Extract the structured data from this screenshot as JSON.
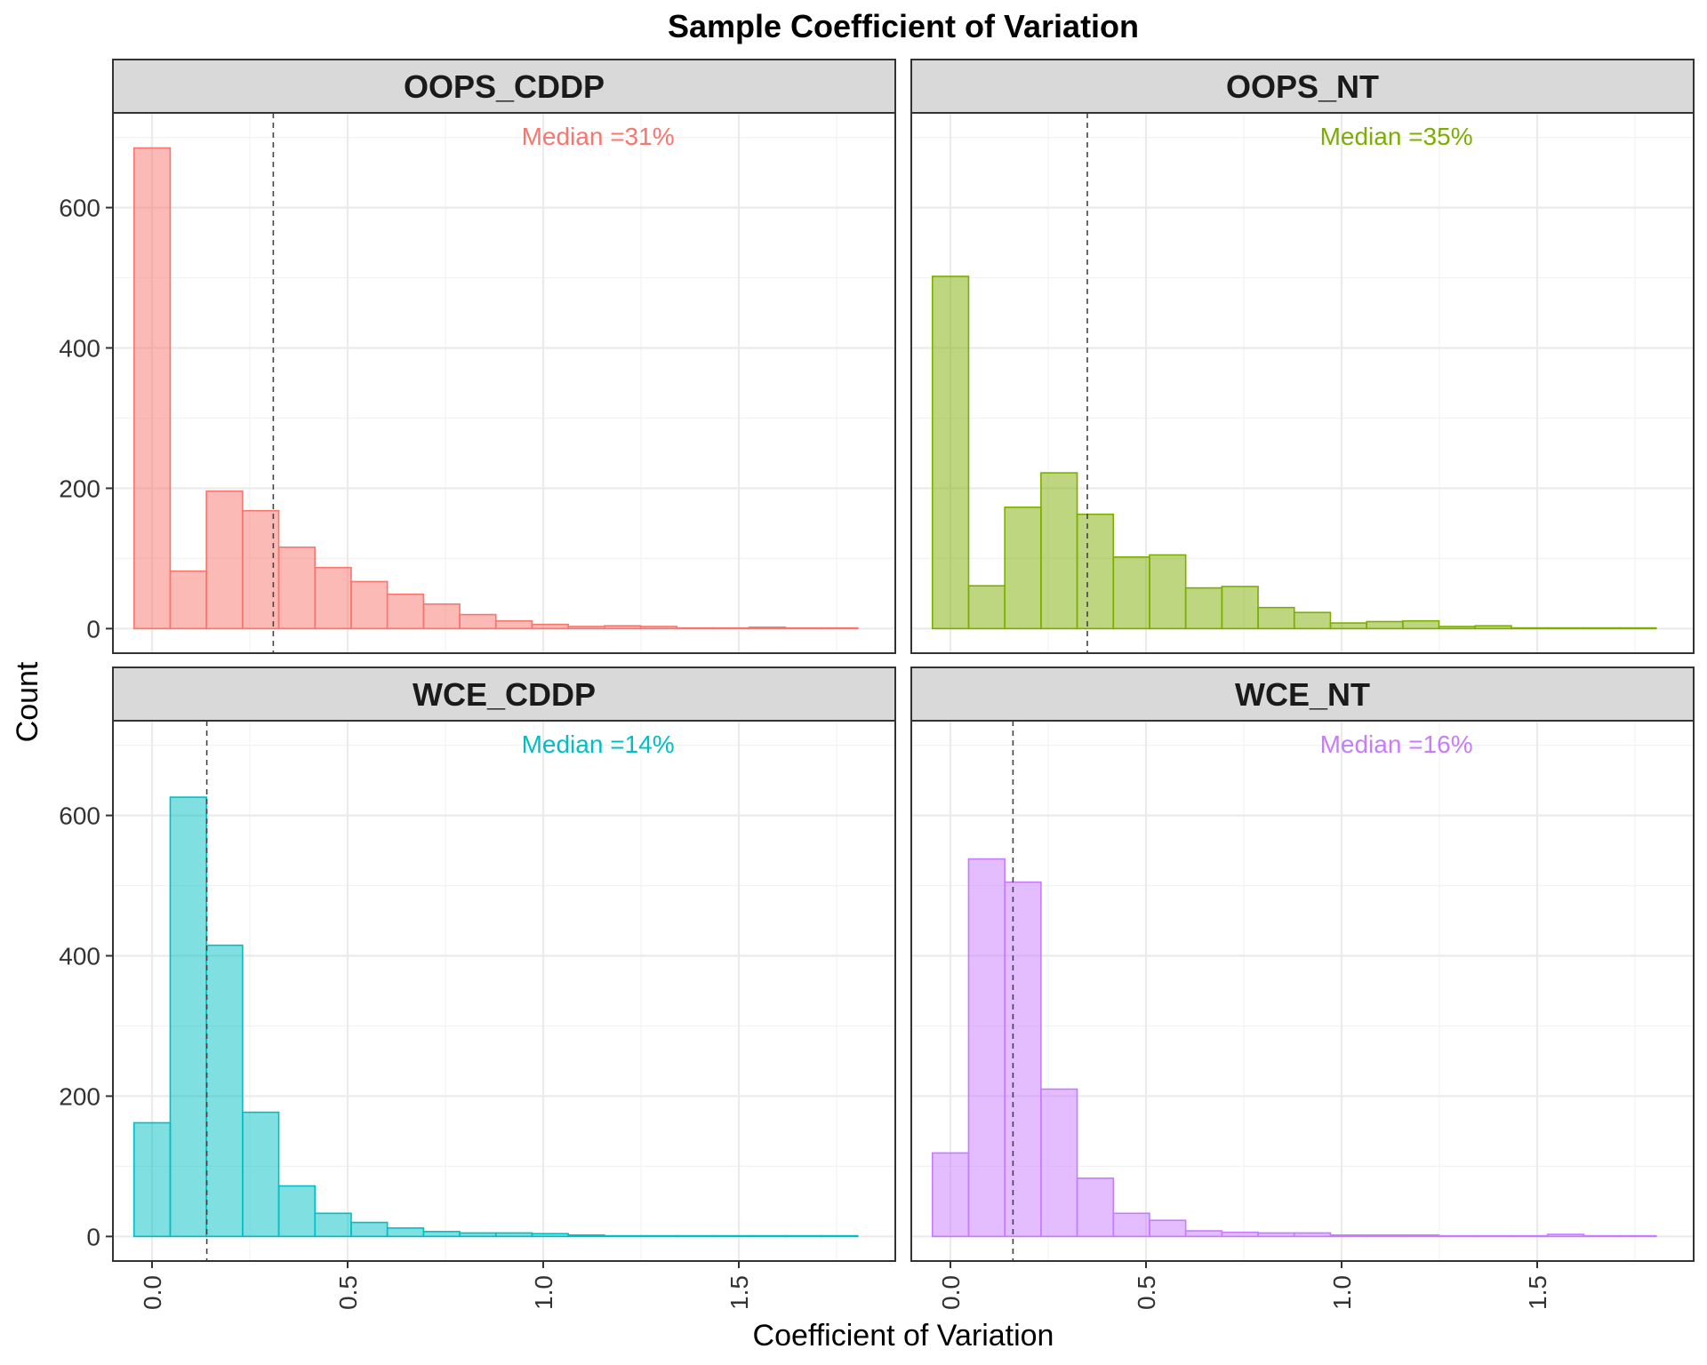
{
  "chart_data": {
    "type": "bar",
    "subtype": "faceted-histogram",
    "title": "Sample Coefficient of Variation",
    "xlabel": "Coefficient of Variation",
    "ylabel": "Count",
    "xlim": [
      -0.1,
      1.9
    ],
    "ylim": [
      -35,
      735
    ],
    "x_ticks": [
      "0.0",
      "0.5",
      "1.0",
      "1.5"
    ],
    "x_tick_values": [
      0,
      0.5,
      1.0,
      1.5
    ],
    "y_ticks": [
      "0",
      "200",
      "400",
      "600"
    ],
    "y_tick_values": [
      0,
      200,
      400,
      600
    ],
    "grid": true,
    "bin_width": 0.0925,
    "bin_start": -0.046,
    "panels": [
      {
        "name": "OOPS_CDDP",
        "color": "#F8766D",
        "fill": "#F8766D",
        "median_value": 0.31,
        "median_label": "Median =31%",
        "counts": [
          685,
          82,
          196,
          168,
          116,
          87,
          67,
          49,
          35,
          20,
          11,
          6,
          3,
          4,
          3,
          1,
          1,
          2,
          1,
          1
        ]
      },
      {
        "name": "OOPS_NT",
        "color": "#7CAE00",
        "fill": "#7CAE00",
        "median_value": 0.35,
        "median_label": "Median =35%",
        "counts": [
          502,
          61,
          173,
          222,
          163,
          102,
          105,
          58,
          60,
          30,
          23,
          8,
          10,
          11,
          3,
          4,
          1,
          1,
          1,
          1
        ]
      },
      {
        "name": "WCE_CDDP",
        "color": "#00BFC4",
        "fill": "#00BFC4",
        "median_value": 0.14,
        "median_label": "Median =14%",
        "counts": [
          162,
          626,
          415,
          177,
          72,
          33,
          20,
          12,
          7,
          5,
          5,
          4,
          2,
          1,
          1,
          1,
          1,
          1,
          1,
          1
        ]
      },
      {
        "name": "WCE_NT",
        "color": "#C77CFF",
        "fill": "#C77CFF",
        "median_value": 0.16,
        "median_label": "Median =16%",
        "counts": [
          119,
          538,
          505,
          210,
          83,
          33,
          23,
          8,
          6,
          5,
          5,
          2,
          2,
          2,
          1,
          1,
          1,
          3,
          1,
          1
        ]
      }
    ]
  }
}
